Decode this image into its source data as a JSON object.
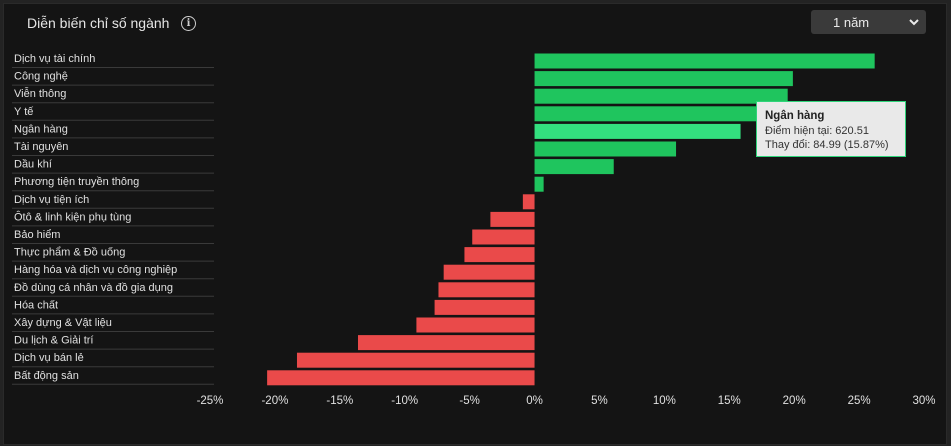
{
  "header": {
    "title": "Diễn biến chỉ số ngành",
    "info_icon": "info-circle-icon",
    "period_select": {
      "value": "1 năm",
      "icon": "chevron-down-icon"
    }
  },
  "colors": {
    "positive": "#1fc55e",
    "negative": "#ea4a4a",
    "highlight": "#33e07f",
    "grid": "#2c2c2c",
    "text": "#e0e0e0"
  },
  "chart_data": {
    "type": "bar",
    "orientation": "horizontal",
    "title": "",
    "xlabel": "",
    "ylabel": "",
    "xlim": [
      -25,
      30
    ],
    "x_ticks": [
      "-25%",
      "-20%",
      "-15%",
      "-10%",
      "-5%",
      "0%",
      "5%",
      "10%",
      "15%",
      "20%",
      "25%",
      "30%"
    ],
    "unit": "%",
    "categories": [
      "Dịch vụ tài chính",
      "Công nghệ",
      "Viễn thông",
      "Y tế",
      "Ngân hàng",
      "Tài nguyên",
      "Dầu khí",
      "Phương tiện truyền thông",
      "Dịch vụ tiện ích",
      "Ôtô & linh kiện phụ tùng",
      "Bảo hiểm",
      "Thực phẩm & Đồ uống",
      "Hàng hóa và dịch vụ công nghiệp",
      "Đồ dùng cá nhân và đồ gia dụng",
      "Hóa chất",
      "Xây dựng & Vật liệu",
      "Du lịch & Giải trí",
      "Dịch vụ bán lẻ",
      "Bất động sản"
    ],
    "values": [
      26.2,
      19.9,
      19.5,
      17.8,
      15.87,
      10.9,
      6.1,
      0.7,
      -0.9,
      -3.4,
      -4.8,
      -5.4,
      -7.0,
      -7.4,
      -7.7,
      -9.1,
      -13.6,
      -18.3,
      -20.6
    ],
    "highlight_index": 4,
    "tooltip": {
      "name": "Ngân hàng",
      "current_label": "Điểm hiện tại: 620.51",
      "change_label": "Thay đổi: 84.99 (15.87%)"
    }
  }
}
